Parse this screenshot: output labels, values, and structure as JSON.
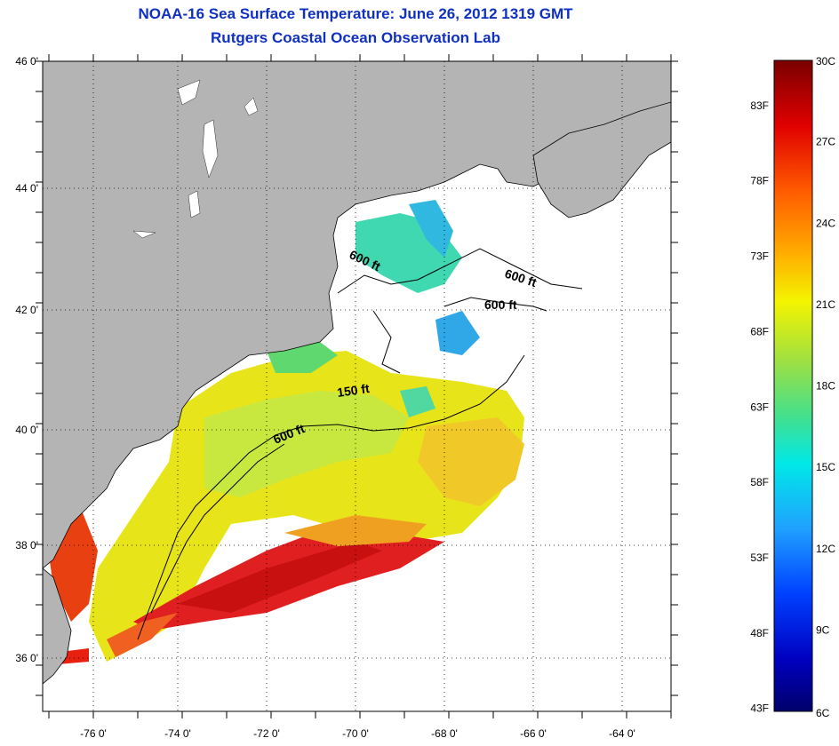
{
  "title": {
    "line1": "NOAA-16 Sea Surface Temperature:  June 26, 2012 1319 GMT",
    "line2": "Rutgers Coastal Ocean Observation Lab"
  },
  "map": {
    "lon_range": [
      -77,
      -62.5
    ],
    "lat_range": [
      35,
      46
    ],
    "lat_ticks": [
      "46 0'",
      "44 0'",
      "42 0'",
      "40 0'",
      "38 0'",
      "36 0'"
    ],
    "lon_ticks": [
      "-76 0'",
      "-74 0'",
      "-72 0'",
      "-70 0'",
      "-68 0'",
      "-66 0'",
      "-64 0'"
    ],
    "contour_labels": [
      "600 ft",
      "600 ft",
      "600 ft",
      "150 ft",
      "600 ft"
    ],
    "land_color": "#b4b4b4",
    "coast_color": "#000000"
  },
  "colorbar": {
    "fahrenheit_labels": [
      "83F",
      "78F",
      "73F",
      "68F",
      "63F",
      "58F",
      "53F",
      "48F",
      "43F"
    ],
    "celsius_labels": [
      "30C",
      "27C",
      "24C",
      "21C",
      "18C",
      "15C",
      "12C",
      "9C",
      "6C"
    ],
    "range_c": [
      6,
      30
    ],
    "stops": [
      "#7a0000",
      "#e00000",
      "#ff5a00",
      "#ffb000",
      "#f4f400",
      "#a0e040",
      "#40e090",
      "#00e8e8",
      "#20a0ff",
      "#0040ff",
      "#0000c0",
      "#00006a"
    ]
  }
}
